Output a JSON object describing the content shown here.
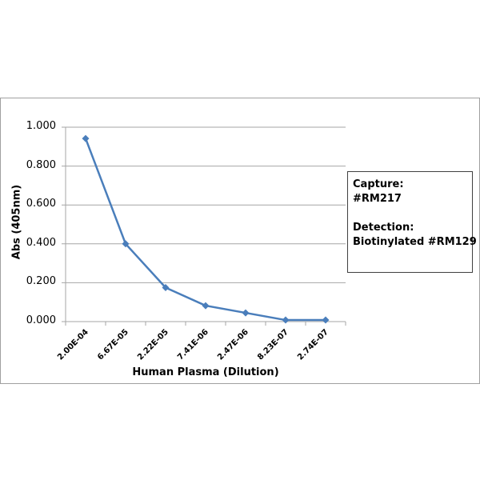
{
  "chart_data": {
    "type": "line",
    "title": "",
    "xlabel": "Human Plasma (Dilution)",
    "ylabel": "Abs (405nm)",
    "categories": [
      "2.00E-04",
      "6.67E-05",
      "2.22E-05",
      "7.41E-06",
      "2.47E-06",
      "8.23E-07",
      "2.74E-07"
    ],
    "series": [
      {
        "name": "Abs (405nm)",
        "values": [
          0.942,
          0.4,
          0.175,
          0.082,
          0.045,
          0.008,
          0.008
        ],
        "color": "#4A7EBB",
        "marker": "diamond"
      }
    ],
    "ylim": [
      0,
      1.0
    ],
    "yticks": [
      "0.000",
      "0.200",
      "0.400",
      "0.600",
      "0.800",
      "1.000"
    ],
    "grid": true,
    "legend_position": "right",
    "annotation": {
      "lines": [
        "Capture:",
        "#RM217",
        "",
        "Detection:",
        "Biotinylated #RM129"
      ]
    }
  },
  "axes": {
    "y_ticks": [
      "1.000",
      "0.800",
      "0.600",
      "0.400",
      "0.200",
      "0.000"
    ]
  }
}
